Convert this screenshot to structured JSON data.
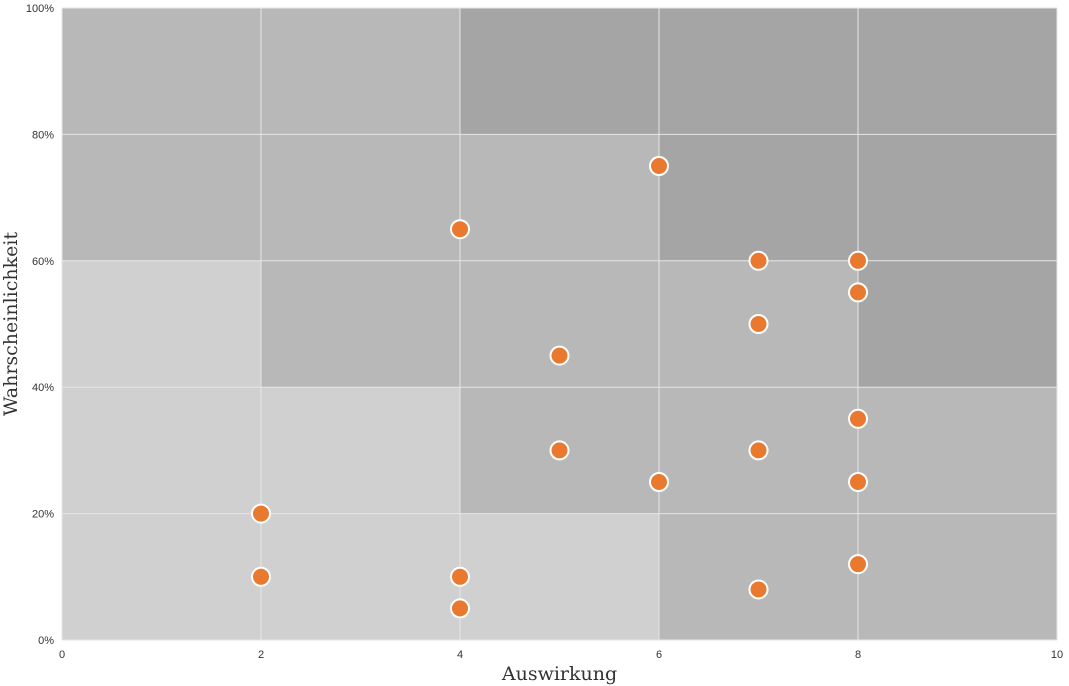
{
  "chart_data": {
    "type": "scatter",
    "title": "",
    "xlabel": "Auswirkung",
    "ylabel": "Wahrscheinlichkeit",
    "xlim": [
      0,
      10
    ],
    "ylim": [
      0,
      1
    ],
    "x_ticks": [
      {
        "value": 0,
        "label": "0"
      },
      {
        "value": 2,
        "label": "2"
      },
      {
        "value": 4,
        "label": "4"
      },
      {
        "value": 6,
        "label": "6"
      },
      {
        "value": 8,
        "label": "8"
      },
      {
        "value": 10,
        "label": "10"
      }
    ],
    "y_ticks": [
      {
        "value": 0,
        "label": "0%"
      },
      {
        "value": 0.2,
        "label": "20%"
      },
      {
        "value": 0.4,
        "label": "40%"
      },
      {
        "value": 0.6,
        "label": "60%"
      },
      {
        "value": 0.8,
        "label": "80%"
      },
      {
        "value": 1.0,
        "label": "100%"
      }
    ],
    "grid": true,
    "background_zones": [
      {
        "x": [
          0,
          2
        ],
        "y": [
          0,
          0.6
        ],
        "color": "#d0d0d0"
      },
      {
        "x": [
          2,
          4
        ],
        "y": [
          0,
          0.4
        ],
        "color": "#d0d0d0"
      },
      {
        "x": [
          4,
          6
        ],
        "y": [
          0,
          0.2
        ],
        "color": "#d0d0d0"
      },
      {
        "x": [
          0,
          2
        ],
        "y": [
          0.6,
          1.0
        ],
        "color": "#b8b8b8"
      },
      {
        "x": [
          2,
          4
        ],
        "y": [
          0.4,
          1.0
        ],
        "color": "#b8b8b8"
      },
      {
        "x": [
          4,
          6
        ],
        "y": [
          0.2,
          0.8
        ],
        "color": "#b8b8b8"
      },
      {
        "x": [
          6,
          10
        ],
        "y": [
          0,
          0.2
        ],
        "color": "#b8b8b8"
      },
      {
        "x": [
          6,
          8
        ],
        "y": [
          0.2,
          0.6
        ],
        "color": "#b8b8b8"
      },
      {
        "x": [
          8,
          10
        ],
        "y": [
          0.2,
          0.4
        ],
        "color": "#b8b8b8"
      },
      {
        "x": [
          4,
          6
        ],
        "y": [
          0.8,
          1.0
        ],
        "color": "#a5a5a5"
      },
      {
        "x": [
          6,
          10
        ],
        "y": [
          0.6,
          1.0
        ],
        "color": "#a5a5a5"
      },
      {
        "x": [
          8,
          10
        ],
        "y": [
          0.4,
          0.6
        ],
        "color": "#a5a5a5"
      }
    ],
    "series": [
      {
        "color": "#e8792f",
        "points": [
          {
            "x": 2,
            "y": 0.2
          },
          {
            "x": 2,
            "y": 0.1
          },
          {
            "x": 4,
            "y": 0.65
          },
          {
            "x": 4,
            "y": 0.1
          },
          {
            "x": 4,
            "y": 0.05
          },
          {
            "x": 5,
            "y": 0.45
          },
          {
            "x": 5,
            "y": 0.3
          },
          {
            "x": 6,
            "y": 0.75
          },
          {
            "x": 6,
            "y": 0.25
          },
          {
            "x": 7,
            "y": 0.6
          },
          {
            "x": 7,
            "y": 0.5
          },
          {
            "x": 7,
            "y": 0.3
          },
          {
            "x": 7,
            "y": 0.08
          },
          {
            "x": 8,
            "y": 0.6
          },
          {
            "x": 8,
            "y": 0.55
          },
          {
            "x": 8,
            "y": 0.35
          },
          {
            "x": 8,
            "y": 0.25
          },
          {
            "x": 8,
            "y": 0.12
          }
        ]
      }
    ]
  }
}
